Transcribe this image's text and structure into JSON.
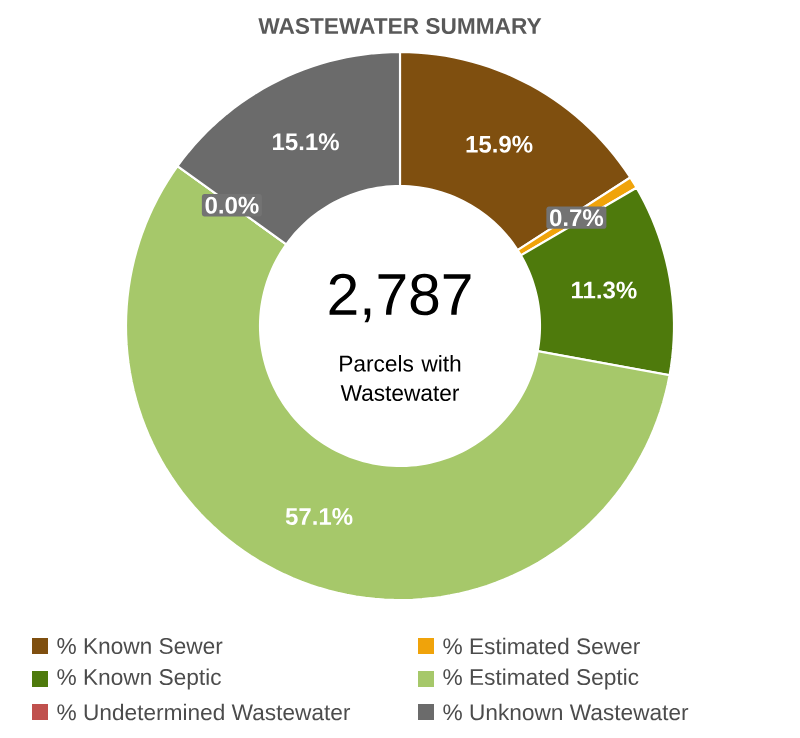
{
  "chart_data": {
    "type": "donut",
    "title": "WASTEWATER SUMMARY",
    "categories": [
      "% Known Sewer",
      "% Estimated Sewer",
      "% Known Septic",
      "% Estimated Septic",
      "% Undetermined Wastewater",
      "% Unknown Wastewater"
    ],
    "values": [
      15.9,
      0.7,
      11.3,
      57.1,
      0.0,
      15.1
    ],
    "colors": [
      "#7f4f0f",
      "#f0a30a",
      "#4e7a0c",
      "#a6c86a",
      "#c0504d",
      "#6b6b6b"
    ],
    "value_labels": [
      "15.9%",
      "0.7%",
      "11.3%",
      "57.1%",
      "0.0%",
      "15.1%"
    ],
    "annotations": [
      "2,787",
      "Parcels with Wastewater"
    ],
    "legend": "bottom"
  }
}
